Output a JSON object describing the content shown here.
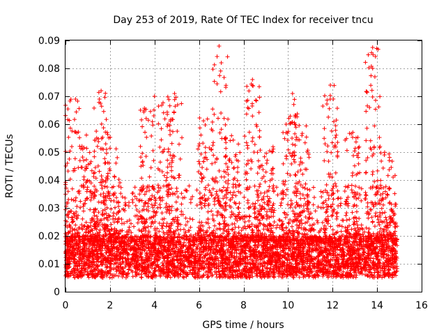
{
  "chart_data": {
    "type": "scatter",
    "title": "Day 253 of 2019, Rate Of TEC Index for receiver tncu",
    "xlabel": "GPS time / hours",
    "ylabel": "ROTI / TECUs",
    "xlim": [
      0,
      16
    ],
    "ylim": [
      0,
      0.09
    ],
    "xticks": [
      0,
      2,
      4,
      6,
      8,
      10,
      12,
      14,
      16
    ],
    "xtick_labels": [
      "0",
      "2",
      "4",
      "6",
      "8",
      "10",
      "12",
      "14",
      "16"
    ],
    "yticks": [
      0,
      0.01,
      0.02,
      0.03,
      0.04,
      0.05,
      0.06,
      0.07,
      0.08,
      0.09
    ],
    "ytick_labels": [
      "0",
      "0.01",
      "0.02",
      "0.03",
      "0.04",
      "0.05",
      "0.06",
      "0.07",
      "0.08",
      "0.09"
    ],
    "grid": true,
    "marker": "+",
    "marker_color": "#ff0000",
    "x_range_of_data": [
      0,
      14.9
    ],
    "baseline_roti": [
      0.005,
      0.02
    ],
    "notable_points": [
      {
        "x": 0.45,
        "y": 0.069
      },
      {
        "x": 1.6,
        "y": 0.072
      },
      {
        "x": 4.0,
        "y": 0.07
      },
      {
        "x": 4.9,
        "y": 0.071
      },
      {
        "x": 6.9,
        "y": 0.088
      },
      {
        "x": 7.0,
        "y": 0.082
      },
      {
        "x": 8.4,
        "y": 0.076
      },
      {
        "x": 10.2,
        "y": 0.071
      },
      {
        "x": 11.9,
        "y": 0.074
      },
      {
        "x": 13.8,
        "y": 0.0875
      },
      {
        "x": 13.8,
        "y": 0.08
      },
      {
        "x": 13.9,
        "y": 0.077
      }
    ],
    "activity_bursts": [
      {
        "center": 0.3,
        "peak": 0.069
      },
      {
        "center": 1.0,
        "peak": 0.057
      },
      {
        "center": 1.6,
        "peak": 0.072
      },
      {
        "center": 2.1,
        "peak": 0.058
      },
      {
        "center": 3.7,
        "peak": 0.066
      },
      {
        "center": 4.5,
        "peak": 0.07
      },
      {
        "center": 4.9,
        "peak": 0.071
      },
      {
        "center": 6.3,
        "peak": 0.063
      },
      {
        "center": 6.95,
        "peak": 0.088
      },
      {
        "center": 7.5,
        "peak": 0.056
      },
      {
        "center": 8.4,
        "peak": 0.076
      },
      {
        "center": 9.0,
        "peak": 0.052
      },
      {
        "center": 10.1,
        "peak": 0.071
      },
      {
        "center": 10.6,
        "peak": 0.06
      },
      {
        "center": 11.9,
        "peak": 0.074
      },
      {
        "center": 12.9,
        "peak": 0.058
      },
      {
        "center": 13.8,
        "peak": 0.0875
      },
      {
        "center": 14.5,
        "peak": 0.05
      }
    ]
  }
}
